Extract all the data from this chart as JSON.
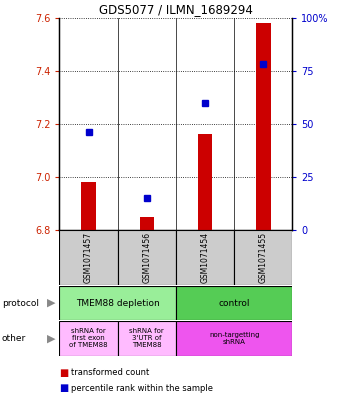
{
  "title": "GDS5077 / ILMN_1689294",
  "samples": [
    "GSM1071457",
    "GSM1071456",
    "GSM1071454",
    "GSM1071455"
  ],
  "transformed_counts": [
    6.98,
    6.85,
    7.16,
    7.58
  ],
  "percentile_ranks": [
    46,
    15,
    60,
    78
  ],
  "ylim": [
    6.8,
    7.6
  ],
  "yticks": [
    6.8,
    7.0,
    7.2,
    7.4,
    7.6
  ],
  "right_yticks": [
    0,
    25,
    50,
    75,
    100
  ],
  "right_ylabels": [
    "0",
    "25",
    "50",
    "75",
    "100%"
  ],
  "bar_bottom": 6.8,
  "bar_color": "#cc0000",
  "dot_color": "#0000cc",
  "bar_width": 0.25,
  "protocol_row": [
    {
      "label": "TMEM88 depletion",
      "cols": [
        0,
        1
      ],
      "color": "#99ee99"
    },
    {
      "label": "control",
      "cols": [
        2,
        3
      ],
      "color": "#55cc55"
    }
  ],
  "other_row": [
    {
      "label": "shRNA for\nfirst exon\nof TMEM88",
      "cols": [
        0
      ],
      "color": "#ffbbff"
    },
    {
      "label": "shRNA for\n3'UTR of\nTMEM88",
      "cols": [
        1
      ],
      "color": "#ffbbff"
    },
    {
      "label": "non-targetting\nshRNA",
      "cols": [
        2,
        3
      ],
      "color": "#ee55ee"
    }
  ],
  "bg_color": "#ffffff",
  "grid_color": "#000000",
  "left_label_color": "#cc2200",
  "right_label_color": "#0000cc"
}
